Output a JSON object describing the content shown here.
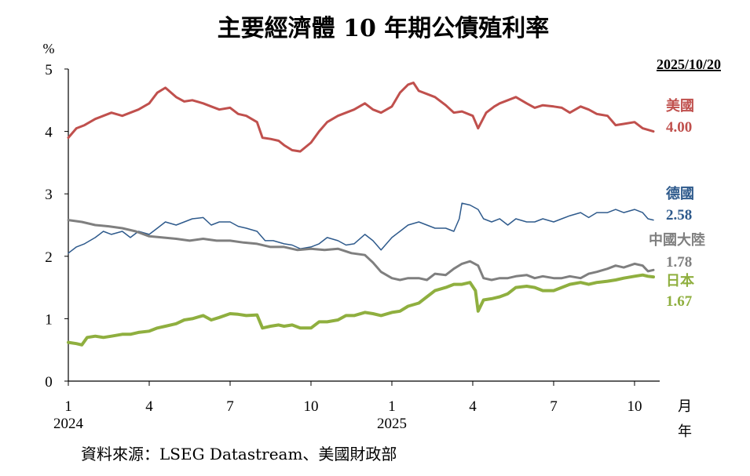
{
  "chart_data": {
    "type": "line",
    "title": "主要經濟體 10 年期公債殖利率",
    "y_unit": "%",
    "x_unit_month": "月",
    "x_unit_year": "年",
    "date_label": "2025/10/20",
    "source": "資料來源：LSEG Datastream、美國財政部",
    "ylim": [
      0,
      5
    ],
    "y_ticks": [
      "0",
      "1",
      "2",
      "3",
      "4",
      "5"
    ],
    "x_range_months": [
      1,
      22.7
    ],
    "x_ticks": [
      {
        "month": 1,
        "label": "1",
        "year": "2024"
      },
      {
        "month": 4,
        "label": "4",
        "year": ""
      },
      {
        "month": 7,
        "label": "7",
        "year": ""
      },
      {
        "month": 10,
        "label": "10",
        "year": ""
      },
      {
        "month": 13,
        "label": "1",
        "year": "2025"
      },
      {
        "month": 16,
        "label": "4",
        "year": ""
      },
      {
        "month": 19,
        "label": "7",
        "year": ""
      },
      {
        "month": 22,
        "label": "10",
        "year": ""
      }
    ],
    "series": [
      {
        "name": "美國",
        "last_value": "4.00",
        "color": "#c0504d",
        "stroke_width": 3,
        "points": [
          [
            1,
            3.9
          ],
          [
            1.3,
            4.05
          ],
          [
            1.6,
            4.1
          ],
          [
            2,
            4.2
          ],
          [
            2.3,
            4.25
          ],
          [
            2.6,
            4.3
          ],
          [
            3,
            4.25
          ],
          [
            3.3,
            4.3
          ],
          [
            3.6,
            4.35
          ],
          [
            4,
            4.45
          ],
          [
            4.3,
            4.62
          ],
          [
            4.6,
            4.7
          ],
          [
            5,
            4.55
          ],
          [
            5.3,
            4.48
          ],
          [
            5.6,
            4.5
          ],
          [
            6,
            4.45
          ],
          [
            6.3,
            4.4
          ],
          [
            6.6,
            4.35
          ],
          [
            7,
            4.38
          ],
          [
            7.3,
            4.28
          ],
          [
            7.6,
            4.25
          ],
          [
            8,
            4.15
          ],
          [
            8.2,
            3.9
          ],
          [
            8.5,
            3.88
          ],
          [
            8.8,
            3.85
          ],
          [
            9,
            3.78
          ],
          [
            9.3,
            3.7
          ],
          [
            9.6,
            3.68
          ],
          [
            10,
            3.82
          ],
          [
            10.3,
            4.0
          ],
          [
            10.6,
            4.15
          ],
          [
            11,
            4.25
          ],
          [
            11.3,
            4.3
          ],
          [
            11.6,
            4.35
          ],
          [
            12,
            4.45
          ],
          [
            12.3,
            4.35
          ],
          [
            12.6,
            4.3
          ],
          [
            13,
            4.4
          ],
          [
            13.3,
            4.62
          ],
          [
            13.6,
            4.75
          ],
          [
            13.8,
            4.78
          ],
          [
            14,
            4.65
          ],
          [
            14.3,
            4.6
          ],
          [
            14.6,
            4.55
          ],
          [
            15,
            4.42
          ],
          [
            15.3,
            4.3
          ],
          [
            15.6,
            4.32
          ],
          [
            16,
            4.25
          ],
          [
            16.2,
            4.05
          ],
          [
            16.5,
            4.3
          ],
          [
            16.8,
            4.4
          ],
          [
            17,
            4.45
          ],
          [
            17.3,
            4.5
          ],
          [
            17.6,
            4.55
          ],
          [
            18,
            4.45
          ],
          [
            18.3,
            4.38
          ],
          [
            18.6,
            4.42
          ],
          [
            19,
            4.4
          ],
          [
            19.3,
            4.38
          ],
          [
            19.6,
            4.3
          ],
          [
            20,
            4.4
          ],
          [
            20.3,
            4.35
          ],
          [
            20.6,
            4.28
          ],
          [
            21,
            4.25
          ],
          [
            21.3,
            4.1
          ],
          [
            21.6,
            4.12
          ],
          [
            22,
            4.15
          ],
          [
            22.3,
            4.05
          ],
          [
            22.7,
            4.0
          ]
        ]
      },
      {
        "name": "德國",
        "last_value": "2.58",
        "color": "#2e5a8c",
        "stroke_width": 1.5,
        "points": [
          [
            1,
            2.05
          ],
          [
            1.3,
            2.15
          ],
          [
            1.6,
            2.2
          ],
          [
            2,
            2.3
          ],
          [
            2.3,
            2.4
          ],
          [
            2.6,
            2.35
          ],
          [
            3,
            2.4
          ],
          [
            3.3,
            2.3
          ],
          [
            3.6,
            2.4
          ],
          [
            4,
            2.35
          ],
          [
            4.3,
            2.45
          ],
          [
            4.6,
            2.55
          ],
          [
            5,
            2.5
          ],
          [
            5.3,
            2.55
          ],
          [
            5.6,
            2.6
          ],
          [
            6,
            2.62
          ],
          [
            6.3,
            2.5
          ],
          [
            6.6,
            2.55
          ],
          [
            7,
            2.55
          ],
          [
            7.3,
            2.48
          ],
          [
            7.6,
            2.45
          ],
          [
            8,
            2.4
          ],
          [
            8.3,
            2.25
          ],
          [
            8.6,
            2.25
          ],
          [
            9,
            2.2
          ],
          [
            9.3,
            2.18
          ],
          [
            9.6,
            2.12
          ],
          [
            10,
            2.15
          ],
          [
            10.3,
            2.2
          ],
          [
            10.6,
            2.3
          ],
          [
            11,
            2.25
          ],
          [
            11.3,
            2.18
          ],
          [
            11.6,
            2.2
          ],
          [
            12,
            2.35
          ],
          [
            12.3,
            2.25
          ],
          [
            12.6,
            2.1
          ],
          [
            13,
            2.3
          ],
          [
            13.3,
            2.4
          ],
          [
            13.6,
            2.5
          ],
          [
            14,
            2.55
          ],
          [
            14.3,
            2.5
          ],
          [
            14.6,
            2.45
          ],
          [
            15,
            2.45
          ],
          [
            15.3,
            2.4
          ],
          [
            15.5,
            2.6
          ],
          [
            15.6,
            2.85
          ],
          [
            15.9,
            2.82
          ],
          [
            16.2,
            2.75
          ],
          [
            16.4,
            2.6
          ],
          [
            16.7,
            2.55
          ],
          [
            17,
            2.6
          ],
          [
            17.3,
            2.5
          ],
          [
            17.6,
            2.6
          ],
          [
            18,
            2.55
          ],
          [
            18.3,
            2.55
          ],
          [
            18.6,
            2.6
          ],
          [
            19,
            2.55
          ],
          [
            19.3,
            2.6
          ],
          [
            19.6,
            2.65
          ],
          [
            20,
            2.7
          ],
          [
            20.3,
            2.62
          ],
          [
            20.6,
            2.7
          ],
          [
            21,
            2.7
          ],
          [
            21.3,
            2.75
          ],
          [
            21.6,
            2.7
          ],
          [
            22,
            2.75
          ],
          [
            22.3,
            2.7
          ],
          [
            22.5,
            2.6
          ],
          [
            22.7,
            2.58
          ]
        ]
      },
      {
        "name": "中國大陸",
        "last_value": "1.78",
        "color": "#7f7f7f",
        "stroke_width": 3,
        "points": [
          [
            1,
            2.58
          ],
          [
            1.5,
            2.55
          ],
          [
            2,
            2.5
          ],
          [
            2.5,
            2.48
          ],
          [
            3,
            2.45
          ],
          [
            3.5,
            2.4
          ],
          [
            4,
            2.32
          ],
          [
            4.5,
            2.3
          ],
          [
            5,
            2.28
          ],
          [
            5.5,
            2.25
          ],
          [
            6,
            2.28
          ],
          [
            6.5,
            2.25
          ],
          [
            7,
            2.25
          ],
          [
            7.5,
            2.22
          ],
          [
            8,
            2.2
          ],
          [
            8.5,
            2.15
          ],
          [
            9,
            2.15
          ],
          [
            9.5,
            2.1
          ],
          [
            10,
            2.12
          ],
          [
            10.5,
            2.1
          ],
          [
            11,
            2.12
          ],
          [
            11.5,
            2.05
          ],
          [
            12,
            2.02
          ],
          [
            12.3,
            1.9
          ],
          [
            12.6,
            1.75
          ],
          [
            13,
            1.65
          ],
          [
            13.3,
            1.62
          ],
          [
            13.6,
            1.65
          ],
          [
            14,
            1.65
          ],
          [
            14.3,
            1.62
          ],
          [
            14.6,
            1.72
          ],
          [
            15,
            1.7
          ],
          [
            15.3,
            1.8
          ],
          [
            15.6,
            1.88
          ],
          [
            15.9,
            1.92
          ],
          [
            16.2,
            1.85
          ],
          [
            16.4,
            1.65
          ],
          [
            16.7,
            1.62
          ],
          [
            17,
            1.65
          ],
          [
            17.3,
            1.65
          ],
          [
            17.6,
            1.68
          ],
          [
            18,
            1.7
          ],
          [
            18.3,
            1.65
          ],
          [
            18.6,
            1.68
          ],
          [
            19,
            1.65
          ],
          [
            19.3,
            1.65
          ],
          [
            19.6,
            1.68
          ],
          [
            20,
            1.65
          ],
          [
            20.3,
            1.72
          ],
          [
            20.6,
            1.75
          ],
          [
            21,
            1.8
          ],
          [
            21.3,
            1.85
          ],
          [
            21.6,
            1.82
          ],
          [
            22,
            1.88
          ],
          [
            22.3,
            1.85
          ],
          [
            22.5,
            1.76
          ],
          [
            22.7,
            1.78
          ]
        ]
      },
      {
        "name": "日本",
        "last_value": "1.67",
        "color": "#8faf3f",
        "stroke_width": 4,
        "points": [
          [
            1,
            0.62
          ],
          [
            1.3,
            0.6
          ],
          [
            1.5,
            0.58
          ],
          [
            1.7,
            0.7
          ],
          [
            2,
            0.72
          ],
          [
            2.3,
            0.7
          ],
          [
            2.6,
            0.72
          ],
          [
            3,
            0.75
          ],
          [
            3.3,
            0.75
          ],
          [
            3.6,
            0.78
          ],
          [
            4,
            0.8
          ],
          [
            4.3,
            0.85
          ],
          [
            4.6,
            0.88
          ],
          [
            5,
            0.92
          ],
          [
            5.3,
            0.98
          ],
          [
            5.6,
            1.0
          ],
          [
            6,
            1.05
          ],
          [
            6.3,
            0.98
          ],
          [
            6.6,
            1.02
          ],
          [
            7,
            1.08
          ],
          [
            7.3,
            1.07
          ],
          [
            7.6,
            1.05
          ],
          [
            8,
            1.06
          ],
          [
            8.2,
            0.85
          ],
          [
            8.5,
            0.88
          ],
          [
            8.8,
            0.9
          ],
          [
            9,
            0.88
          ],
          [
            9.3,
            0.9
          ],
          [
            9.6,
            0.85
          ],
          [
            10,
            0.85
          ],
          [
            10.3,
            0.95
          ],
          [
            10.6,
            0.95
          ],
          [
            11,
            0.98
          ],
          [
            11.3,
            1.05
          ],
          [
            11.6,
            1.05
          ],
          [
            12,
            1.1
          ],
          [
            12.3,
            1.08
          ],
          [
            12.6,
            1.05
          ],
          [
            13,
            1.1
          ],
          [
            13.3,
            1.12
          ],
          [
            13.6,
            1.2
          ],
          [
            14,
            1.25
          ],
          [
            14.3,
            1.35
          ],
          [
            14.6,
            1.45
          ],
          [
            15,
            1.5
          ],
          [
            15.3,
            1.55
          ],
          [
            15.6,
            1.55
          ],
          [
            15.9,
            1.58
          ],
          [
            16.1,
            1.45
          ],
          [
            16.2,
            1.12
          ],
          [
            16.4,
            1.3
          ],
          [
            16.7,
            1.32
          ],
          [
            17,
            1.35
          ],
          [
            17.3,
            1.4
          ],
          [
            17.6,
            1.5
          ],
          [
            18,
            1.52
          ],
          [
            18.3,
            1.5
          ],
          [
            18.6,
            1.45
          ],
          [
            19,
            1.45
          ],
          [
            19.3,
            1.5
          ],
          [
            19.6,
            1.55
          ],
          [
            20,
            1.58
          ],
          [
            20.3,
            1.55
          ],
          [
            20.6,
            1.58
          ],
          [
            21,
            1.6
          ],
          [
            21.3,
            1.62
          ],
          [
            21.6,
            1.65
          ],
          [
            22,
            1.68
          ],
          [
            22.3,
            1.7
          ],
          [
            22.5,
            1.68
          ],
          [
            22.7,
            1.67
          ]
        ]
      }
    ]
  }
}
